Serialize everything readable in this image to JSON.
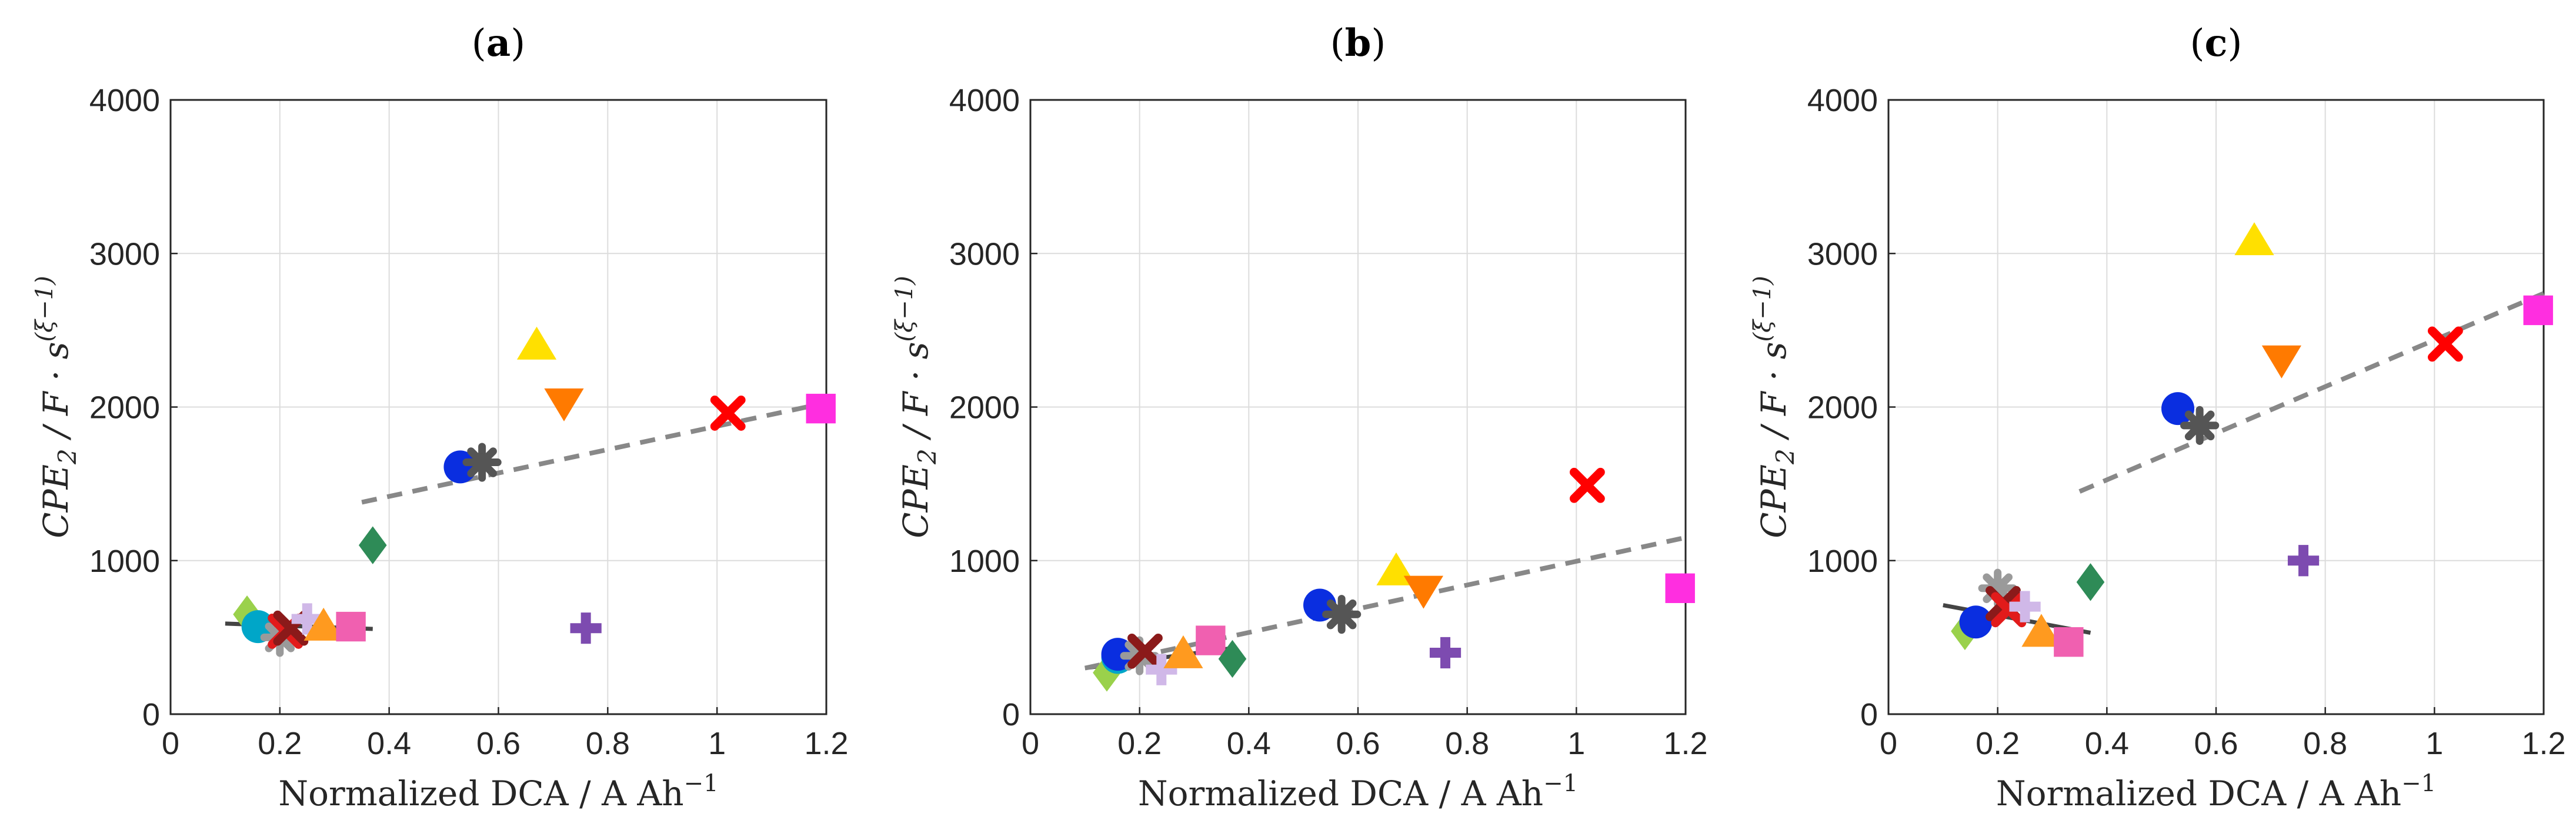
{
  "chart_data": [
    {
      "type": "scatter",
      "title": "(a)",
      "xlabel": "Normalized DCA / A Ah",
      "xlabel_sup": "−1",
      "ylabel": "CPE",
      "ylabel_sub": "2",
      "ylabel_unit": " / F · s",
      "ylabel_sup": "(ξ−1)",
      "xlim": [
        0,
        1.2
      ],
      "ylim": [
        0,
        4000
      ],
      "xticks": [
        "0",
        "0.2",
        "0.4",
        "0.6",
        "0.8",
        "1",
        "1.2"
      ],
      "yticks": [
        "0",
        "1000",
        "2000",
        "3000",
        "4000"
      ],
      "grid": true,
      "points": [
        {
          "shape": "diamond",
          "color": "#9ad14b",
          "x": 0.14,
          "y": 650
        },
        {
          "shape": "circle",
          "color": "#00a6c8",
          "x": 0.16,
          "y": 570
        },
        {
          "shape": "star",
          "color": "#9a9a9a",
          "x": 0.2,
          "y": 500
        },
        {
          "shape": "x",
          "color": "#e21b1b",
          "x": 0.21,
          "y": 540
        },
        {
          "shape": "x",
          "color": "#8b1a1a",
          "x": 0.22,
          "y": 560
        },
        {
          "shape": "plus",
          "color": "#d0b8e8",
          "x": 0.25,
          "y": 620
        },
        {
          "shape": "triangle-up",
          "color": "#ff9a1f",
          "x": 0.28,
          "y": 570
        },
        {
          "shape": "square",
          "color": "#f060b0",
          "x": 0.33,
          "y": 570
        },
        {
          "shape": "diamond",
          "color": "#2e8b57",
          "x": 0.37,
          "y": 1100
        },
        {
          "shape": "circle",
          "color": "#0a2ee0",
          "x": 0.53,
          "y": 1610
        },
        {
          "shape": "star",
          "color": "#555555",
          "x": 0.57,
          "y": 1640
        },
        {
          "shape": "triangle-up",
          "color": "#ffe000",
          "x": 0.67,
          "y": 2400
        },
        {
          "shape": "triangle-down",
          "color": "#ff7a00",
          "x": 0.72,
          "y": 2030
        },
        {
          "shape": "plus",
          "color": "#7d4bb0",
          "x": 0.76,
          "y": 560
        },
        {
          "shape": "x",
          "color": "#ff0000",
          "x": 1.02,
          "y": 1960
        },
        {
          "shape": "square",
          "color": "#ff2ee0",
          "x": 1.19,
          "y": 1990
        }
      ],
      "lines": [
        {
          "style": "solid",
          "color": "#444444",
          "x": [
            0.1,
            0.37
          ],
          "y": [
            590,
            555
          ]
        },
        {
          "style": "dashed",
          "color": "#888888",
          "x": [
            0.35,
            1.19
          ],
          "y": [
            1380,
            2020
          ]
        }
      ]
    },
    {
      "type": "scatter",
      "title": "(b)",
      "xlabel": "Normalized DCA / A Ah",
      "xlabel_sup": "−1",
      "ylabel": "CPE",
      "ylabel_sub": "2",
      "ylabel_unit": " / F · s",
      "ylabel_sup": "(ξ−1)",
      "xlim": [
        0,
        1.2
      ],
      "ylim": [
        0,
        4000
      ],
      "xticks": [
        "0",
        "0.2",
        "0.4",
        "0.6",
        "0.8",
        "1",
        "1.2"
      ],
      "yticks": [
        "0",
        "1000",
        "2000",
        "3000",
        "4000"
      ],
      "grid": true,
      "points": [
        {
          "shape": "diamond",
          "color": "#9ad14b",
          "x": 0.14,
          "y": 270
        },
        {
          "shape": "circle",
          "color": "#00a6c8",
          "x": 0.16,
          "y": 370
        },
        {
          "shape": "circle",
          "color": "#0a2ee0",
          "x": 0.16,
          "y": 390
        },
        {
          "shape": "star",
          "color": "#9a9a9a",
          "x": 0.2,
          "y": 380
        },
        {
          "shape": "x",
          "color": "#8b1a1a",
          "x": 0.21,
          "y": 410
        },
        {
          "shape": "plus",
          "color": "#d0b8e8",
          "x": 0.24,
          "y": 290
        },
        {
          "shape": "triangle-up",
          "color": "#ff9a1f",
          "x": 0.28,
          "y": 390
        },
        {
          "shape": "square",
          "color": "#f060b0",
          "x": 0.33,
          "y": 480
        },
        {
          "shape": "diamond",
          "color": "#2e8b57",
          "x": 0.37,
          "y": 360
        },
        {
          "shape": "circle",
          "color": "#0a2ee0",
          "x": 0.53,
          "y": 710
        },
        {
          "shape": "star",
          "color": "#555555",
          "x": 0.57,
          "y": 650
        },
        {
          "shape": "triangle-up",
          "color": "#ffe000",
          "x": 0.67,
          "y": 930
        },
        {
          "shape": "triangle-down",
          "color": "#ff7a00",
          "x": 0.72,
          "y": 810
        },
        {
          "shape": "plus",
          "color": "#7d4bb0",
          "x": 0.76,
          "y": 400
        },
        {
          "shape": "x",
          "color": "#ff0000",
          "x": 1.02,
          "y": 1490
        },
        {
          "shape": "square",
          "color": "#ff2ee0",
          "x": 1.19,
          "y": 820
        }
      ],
      "lines": [
        {
          "style": "solid",
          "color": "#444444",
          "x": [
            0.1,
            0.37
          ],
          "y": [
            300,
            430
          ]
        },
        {
          "style": "dashed",
          "color": "#888888",
          "x": [
            0.1,
            1.2
          ],
          "y": [
            300,
            1150
          ]
        }
      ]
    },
    {
      "type": "scatter",
      "title": "(c)",
      "xlabel": "Normalized DCA / A Ah",
      "xlabel_sup": "−1",
      "ylabel": "CPE",
      "ylabel_sub": "2",
      "ylabel_unit": " / F · s",
      "ylabel_sup": "(ξ−1)",
      "xlim": [
        0,
        1.2
      ],
      "ylim": [
        0,
        4000
      ],
      "xticks": [
        "0",
        "0.2",
        "0.4",
        "0.6",
        "0.8",
        "1",
        "1.2"
      ],
      "yticks": [
        "0",
        "1000",
        "2000",
        "3000",
        "4000"
      ],
      "grid": true,
      "points": [
        {
          "shape": "diamond",
          "color": "#9ad14b",
          "x": 0.14,
          "y": 540
        },
        {
          "shape": "circle",
          "color": "#0a2ee0",
          "x": 0.16,
          "y": 600
        },
        {
          "shape": "star",
          "color": "#9a9a9a",
          "x": 0.2,
          "y": 820
        },
        {
          "shape": "x",
          "color": "#8b1a1a",
          "x": 0.21,
          "y": 720
        },
        {
          "shape": "x",
          "color": "#e21b1b",
          "x": 0.22,
          "y": 680
        },
        {
          "shape": "plus",
          "color": "#d0b8e8",
          "x": 0.25,
          "y": 700
        },
        {
          "shape": "triangle-up",
          "color": "#ff9a1f",
          "x": 0.28,
          "y": 530
        },
        {
          "shape": "square",
          "color": "#f060b0",
          "x": 0.33,
          "y": 470
        },
        {
          "shape": "diamond",
          "color": "#2e8b57",
          "x": 0.37,
          "y": 860
        },
        {
          "shape": "circle",
          "color": "#0a2ee0",
          "x": 0.53,
          "y": 1990
        },
        {
          "shape": "star",
          "color": "#555555",
          "x": 0.57,
          "y": 1880
        },
        {
          "shape": "triangle-up",
          "color": "#ffe000",
          "x": 0.67,
          "y": 3080
        },
        {
          "shape": "triangle-down",
          "color": "#ff7a00",
          "x": 0.72,
          "y": 2310
        },
        {
          "shape": "plus",
          "color": "#7d4bb0",
          "x": 0.76,
          "y": 1000
        },
        {
          "shape": "x",
          "color": "#ff0000",
          "x": 1.02,
          "y": 2410
        },
        {
          "shape": "square",
          "color": "#ff2ee0",
          "x": 1.19,
          "y": 2630
        }
      ],
      "lines": [
        {
          "style": "solid",
          "color": "#444444",
          "x": [
            0.1,
            0.37
          ],
          "y": [
            710,
            530
          ]
        },
        {
          "style": "dashed",
          "color": "#888888",
          "x": [
            0.35,
            1.2
          ],
          "y": [
            1450,
            2740
          ]
        }
      ]
    }
  ]
}
